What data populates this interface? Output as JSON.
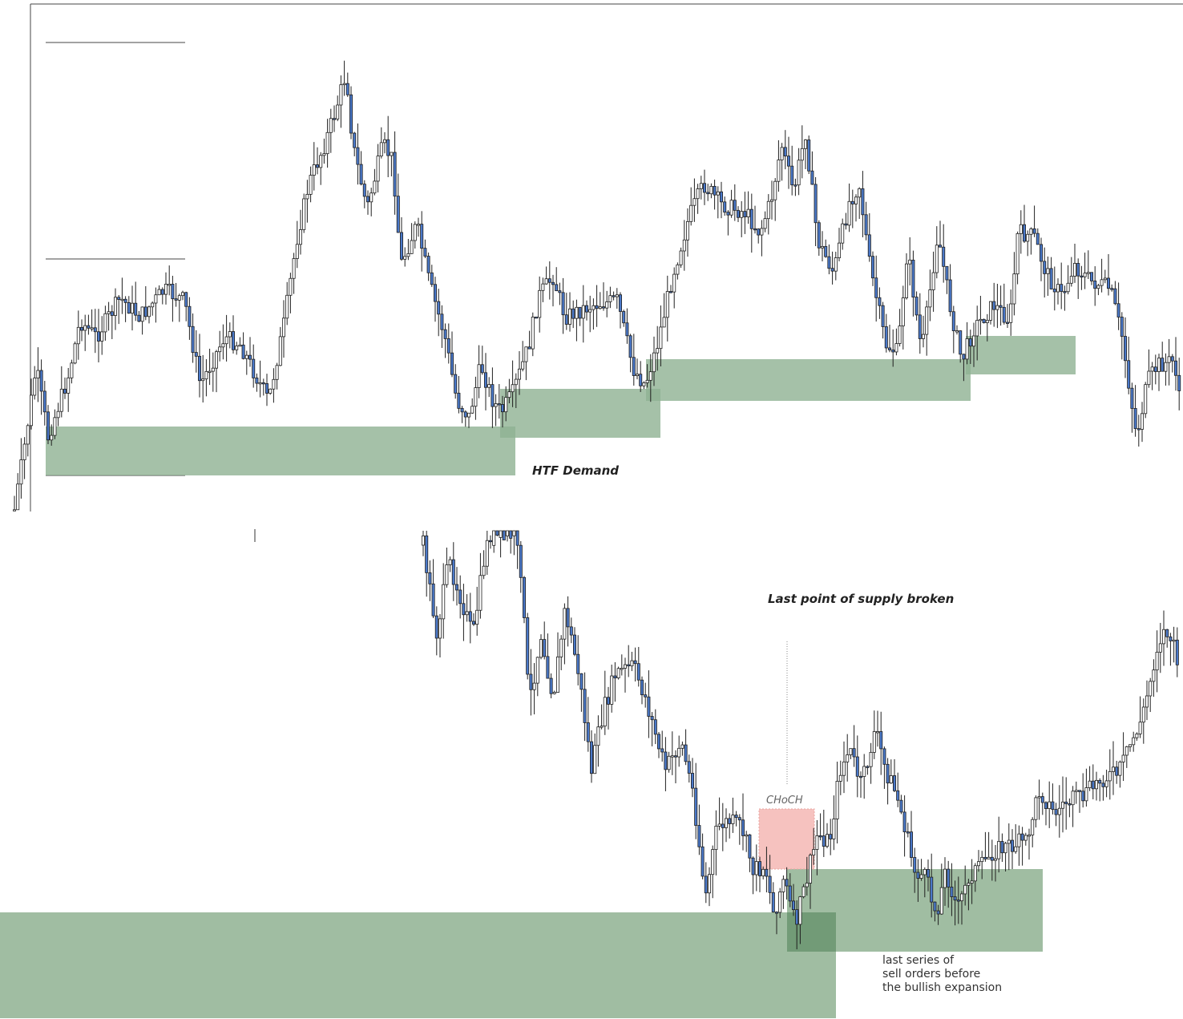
{
  "chart_data": [
    {
      "type": "candlestick",
      "panel": "top",
      "title": "",
      "xlabel": "",
      "ylabel": "",
      "annotations": {
        "zone_label": "HTF Demand"
      },
      "price_path": [
        [
          18,
          636
        ],
        [
          30,
          560
        ],
        [
          45,
          458
        ],
        [
          60,
          545
        ],
        [
          85,
          470
        ],
        [
          100,
          400
        ],
        [
          120,
          420
        ],
        [
          150,
          372
        ],
        [
          175,
          395
        ],
        [
          205,
          362
        ],
        [
          230,
          375
        ],
        [
          250,
          480
        ],
        [
          280,
          420
        ],
        [
          300,
          430
        ],
        [
          320,
          470
        ],
        [
          335,
          500
        ],
        [
          355,
          400
        ],
        [
          370,
          300
        ],
        [
          385,
          230
        ],
        [
          405,
          180
        ],
        [
          418,
          140
        ],
        [
          432,
          90
        ],
        [
          440,
          180
        ],
        [
          458,
          260
        ],
        [
          478,
          180
        ],
        [
          490,
          200
        ],
        [
          500,
          330
        ],
        [
          520,
          280
        ],
        [
          535,
          350
        ],
        [
          555,
          420
        ],
        [
          570,
          500
        ],
        [
          585,
          520
        ],
        [
          600,
          455
        ],
        [
          615,
          500
        ],
        [
          625,
          515
        ],
        [
          640,
          490
        ],
        [
          660,
          430
        ],
        [
          672,
          370
        ],
        [
          690,
          345
        ],
        [
          705,
          395
        ],
        [
          740,
          380
        ],
        [
          770,
          375
        ],
        [
          790,
          460
        ],
        [
          805,
          480
        ],
        [
          820,
          430
        ],
        [
          840,
          340
        ],
        [
          860,
          270
        ],
        [
          878,
          230
        ],
        [
          900,
          255
        ],
        [
          930,
          265
        ],
        [
          948,
          290
        ],
        [
          962,
          250
        ],
        [
          975,
          180
        ],
        [
          990,
          240
        ],
        [
          1005,
          165
        ],
        [
          1020,
          300
        ],
        [
          1040,
          340
        ],
        [
          1060,
          250
        ],
        [
          1072,
          230
        ],
        [
          1085,
          330
        ],
        [
          1105,
          430
        ],
        [
          1120,
          440
        ],
        [
          1132,
          310
        ],
        [
          1150,
          440
        ],
        [
          1170,
          290
        ],
        [
          1185,
          380
        ],
        [
          1200,
          450
        ],
        [
          1215,
          410
        ],
        [
          1240,
          380
        ],
        [
          1260,
          400
        ],
        [
          1270,
          290
        ],
        [
          1290,
          295
        ],
        [
          1305,
          340
        ],
        [
          1325,
          370
        ],
        [
          1340,
          330
        ],
        [
          1360,
          350
        ],
        [
          1385,
          360
        ],
        [
          1400,
          420
        ],
        [
          1418,
          545
        ],
        [
          1432,
          475
        ],
        [
          1445,
          455
        ],
        [
          1465,
          450
        ],
        [
          1474,
          505
        ]
      ],
      "zones": [
        {
          "role": "demand",
          "color": "#8fb292"
        },
        {
          "role": "demand",
          "color": "#8fb292"
        },
        {
          "role": "demand",
          "color": "#8fb292"
        },
        {
          "role": "demand",
          "color": "#8fb292"
        }
      ]
    },
    {
      "type": "candlestick",
      "panel": "bottom",
      "title": "",
      "xlabel": "",
      "ylabel": "",
      "annotations": {
        "supply_broken_label": "Last point of supply broken",
        "choch_label": "CHoCH",
        "note_lines": [
          "last series of",
          "sell orders before",
          "the bullish expansion"
        ]
      },
      "price_path": [
        [
          528,
          680
        ],
        [
          545,
          790
        ],
        [
          560,
          700
        ],
        [
          575,
          745
        ],
        [
          590,
          795
        ],
        [
          605,
          690
        ],
        [
          612,
          665
        ],
        [
          640,
          665
        ],
        [
          650,
          710
        ],
        [
          660,
          880
        ],
        [
          675,
          790
        ],
        [
          690,
          870
        ],
        [
          705,
          760
        ],
        [
          722,
          840
        ],
        [
          738,
          960
        ],
        [
          752,
          890
        ],
        [
          768,
          840
        ],
        [
          790,
          830
        ],
        [
          805,
          870
        ],
        [
          830,
          960
        ],
        [
          850,
          925
        ],
        [
          865,
          990
        ],
        [
          880,
          1120
        ],
        [
          895,
          1030
        ],
        [
          910,
          1025
        ],
        [
          925,
          1030
        ],
        [
          940,
          1085
        ],
        [
          955,
          1080
        ],
        [
          965,
          1140
        ],
        [
          978,
          1095
        ],
        [
          992,
          1155
        ],
        [
          1008,
          1090
        ],
        [
          1020,
          1040
        ],
        [
          1035,
          1050
        ],
        [
          1048,
          960
        ],
        [
          1060,
          935
        ],
        [
          1075,
          980
        ],
        [
          1092,
          910
        ],
        [
          1105,
          960
        ],
        [
          1118,
          990
        ],
        [
          1130,
          1035
        ],
        [
          1140,
          1085
        ],
        [
          1155,
          1095
        ],
        [
          1168,
          1140
        ],
        [
          1180,
          1085
        ],
        [
          1195,
          1135
        ],
        [
          1210,
          1090
        ],
        [
          1225,
          1080
        ],
        [
          1240,
          1060
        ],
        [
          1260,
          1055
        ],
        [
          1280,
          1050
        ],
        [
          1297,
          985
        ],
        [
          1315,
          1015
        ],
        [
          1330,
          1000
        ],
        [
          1350,
          995
        ],
        [
          1375,
          970
        ],
        [
          1395,
          965
        ],
        [
          1410,
          930
        ],
        [
          1425,
          895
        ],
        [
          1435,
          850
        ],
        [
          1445,
          800
        ],
        [
          1455,
          785
        ],
        [
          1465,
          810
        ],
        [
          1472,
          835
        ]
      ],
      "zones": [
        {
          "role": "demand",
          "color": "#8fb292"
        },
        {
          "role": "demand",
          "color": "#8fb292"
        },
        {
          "role": "overlap",
          "color": "#6f9873"
        },
        {
          "role": "supply",
          "color": "#f6c2bf"
        }
      ]
    }
  ],
  "colors": {
    "bull_fill": "#ffffff",
    "bear_fill": "#4a78c8",
    "wick": "#1f1f1f",
    "demand": "#8fb292",
    "demand_overlap": "#6f9873",
    "supply": "#f6c2bf"
  }
}
